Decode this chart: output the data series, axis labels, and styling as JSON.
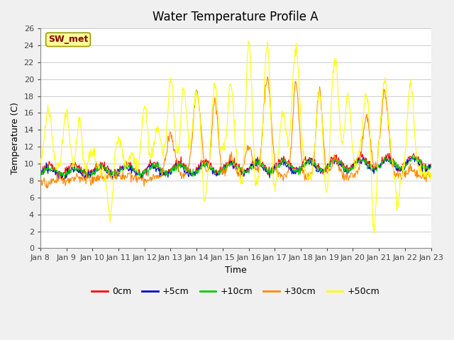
{
  "title": "Water Temperature Profile A",
  "xlabel": "Time",
  "ylabel": "Temperature (C)",
  "annotation": "SW_met",
  "ylim": [
    0,
    26
  ],
  "yticks": [
    0,
    2,
    4,
    6,
    8,
    10,
    12,
    14,
    16,
    18,
    20,
    22,
    24,
    26
  ],
  "x_labels": [
    "Jan 8",
    "Jan 9",
    "Jan 10",
    "Jan 11",
    "Jan 12",
    "Jan 13",
    "Jan 14",
    "Jan 15",
    "Jan 16",
    "Jan 17",
    "Jan 18",
    "Jan 19",
    "Jan 20",
    "Jan 21",
    "Jan 22",
    "Jan 23"
  ],
  "series_labels": [
    "0cm",
    "+5cm",
    "+10cm",
    "+30cm",
    "+50cm"
  ],
  "series_colors": [
    "#ff0000",
    "#0000cc",
    "#00cc00",
    "#ff8800",
    "#ffff00"
  ],
  "background_color": "#f0f0f0",
  "plot_bg_color": "#ffffff",
  "grid_color": "#cccccc",
  "title_fontsize": 12,
  "label_fontsize": 9,
  "tick_fontsize": 8,
  "legend_fontsize": 9,
  "annotation_bg": "#ffff99",
  "annotation_fg": "#880000",
  "annotation_edge": "#999900"
}
